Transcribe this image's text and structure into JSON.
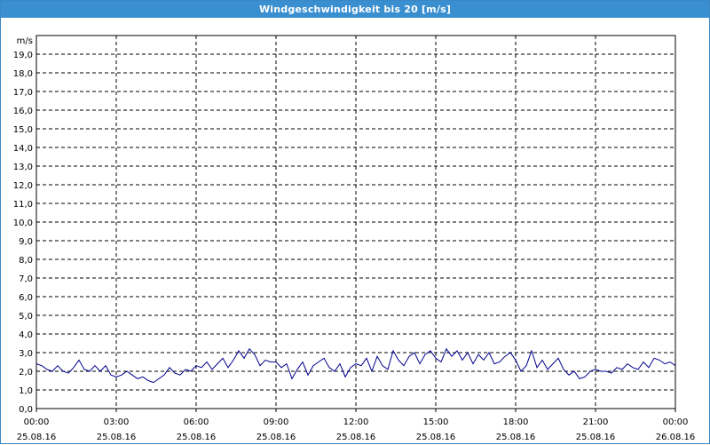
{
  "window": {
    "title": "Windgeschwindigkeit bis 20 [m/s]"
  },
  "chart_data": {
    "type": "line",
    "title": "Windgeschwindigkeit bis 20 [m/s]",
    "ylabel": "m/s",
    "xlabel": "",
    "ylim": [
      0,
      20
    ],
    "y_ticks": [
      "0,0",
      "1,0",
      "2,0",
      "3,0",
      "4,0",
      "5,0",
      "6,0",
      "7,0",
      "8,0",
      "9,0",
      "10,0",
      "11,0",
      "12,0",
      "13,0",
      "14,0",
      "15,0",
      "16,0",
      "17,0",
      "18,0",
      "19,0"
    ],
    "xlim": [
      0,
      24
    ],
    "x_ticks": [
      {
        "time": "00:00",
        "date": "25.08.16"
      },
      {
        "time": "03:00",
        "date": "25.08.16"
      },
      {
        "time": "06:00",
        "date": "25.08.16"
      },
      {
        "time": "09:00",
        "date": "25.08.16"
      },
      {
        "time": "12:00",
        "date": "25.08.16"
      },
      {
        "time": "15:00",
        "date": "25.08.16"
      },
      {
        "time": "18:00",
        "date": "25.08.16"
      },
      {
        "time": "21:00",
        "date": "25.08.16"
      },
      {
        "time": "00:00",
        "date": "26.08.16"
      }
    ],
    "grid": true,
    "series": [
      {
        "color": "#00008b",
        "x": [
          0.0,
          0.2,
          0.4,
          0.6,
          0.8,
          1.0,
          1.2,
          1.4,
          1.6,
          1.8,
          2.0,
          2.2,
          2.4,
          2.6,
          2.8,
          3.0,
          3.2,
          3.4,
          3.6,
          3.8,
          4.0,
          4.2,
          4.4,
          4.6,
          4.8,
          5.0,
          5.2,
          5.4,
          5.6,
          5.8,
          6.0,
          6.2,
          6.4,
          6.6,
          6.8,
          7.0,
          7.2,
          7.4,
          7.6,
          7.8,
          8.0,
          8.2,
          8.4,
          8.6,
          8.8,
          9.0,
          9.2,
          9.4,
          9.6,
          9.8,
          10.0,
          10.2,
          10.4,
          10.6,
          10.8,
          11.0,
          11.2,
          11.4,
          11.6,
          11.8,
          12.0,
          12.2,
          12.4,
          12.6,
          12.8,
          13.0,
          13.2,
          13.4,
          13.6,
          13.8,
          14.0,
          14.2,
          14.4,
          14.6,
          14.8,
          15.0,
          15.2,
          15.4,
          15.6,
          15.8,
          16.0,
          16.2,
          16.4,
          16.6,
          16.8,
          17.0,
          17.2,
          17.4,
          17.6,
          17.8,
          18.0,
          18.2,
          18.4,
          18.6,
          18.8,
          19.0,
          19.2,
          19.4,
          19.6,
          19.8,
          20.0,
          20.2,
          20.4,
          20.6,
          20.8,
          21.0,
          21.2,
          21.4,
          21.6,
          21.8,
          22.0,
          22.2,
          22.4,
          22.6,
          22.8,
          23.0,
          23.2,
          23.4,
          23.6,
          23.8,
          24.0
        ],
        "y": [
          2.4,
          2.3,
          2.1,
          2.0,
          2.3,
          2.0,
          1.9,
          2.2,
          2.6,
          2.1,
          2.0,
          2.3,
          2.0,
          2.3,
          1.8,
          1.7,
          1.8,
          2.0,
          1.8,
          1.6,
          1.7,
          1.5,
          1.4,
          1.6,
          1.8,
          2.2,
          1.9,
          1.8,
          2.1,
          2.0,
          2.3,
          2.2,
          2.5,
          2.1,
          2.4,
          2.7,
          2.2,
          2.6,
          3.1,
          2.7,
          3.2,
          2.9,
          2.3,
          2.6,
          2.5,
          2.5,
          2.2,
          2.4,
          1.6,
          2.1,
          2.5,
          1.8,
          2.3,
          2.5,
          2.7,
          2.2,
          2.0,
          2.4,
          1.7,
          2.2,
          2.4,
          2.3,
          2.7,
          2.0,
          2.8,
          2.3,
          2.1,
          3.1,
          2.6,
          2.3,
          2.8,
          3.0,
          2.4,
          2.9,
          3.1,
          2.7,
          2.5,
          3.2,
          2.8,
          3.1,
          2.6,
          3.0,
          2.4,
          2.9,
          2.6,
          3.0,
          2.4,
          2.5,
          2.8,
          3.0,
          2.6,
          2.0,
          2.3,
          3.1,
          2.2,
          2.6,
          2.1,
          2.4,
          2.7,
          2.1,
          1.8,
          2.0,
          1.6,
          1.7,
          2.0,
          2.1,
          2.0,
          2.0,
          1.9,
          2.2,
          2.1,
          2.4,
          2.2,
          2.1,
          2.5,
          2.2,
          2.7,
          2.6,
          2.4,
          2.5,
          2.3
        ]
      }
    ]
  }
}
